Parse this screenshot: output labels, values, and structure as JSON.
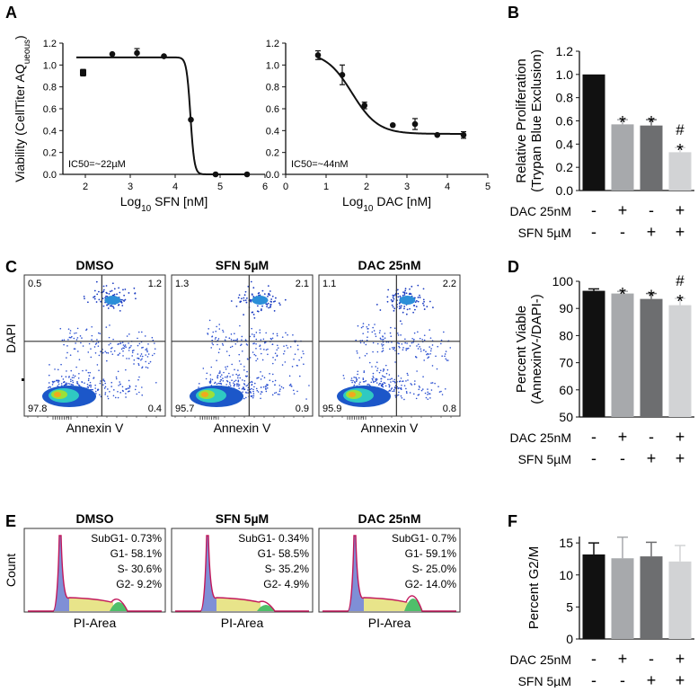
{
  "panel_letters": {
    "a": "A",
    "b": "B",
    "c": "C",
    "d": "D",
    "e": "E",
    "f": "F"
  },
  "colors": {
    "black": "#111111",
    "dark_gray": "#6d6e70",
    "mid_gray": "#a7a9ac",
    "light_gray": "#d2d3d5"
  },
  "chart_data": [
    {
      "id": "A1",
      "type": "scatter",
      "ylabel_main": "Viability (CellTiter AQ",
      "ylabel_sub": "ueous",
      "ylabel_end": ")",
      "xlabel_prefix": "Log",
      "xlabel_sub": "10",
      "xlabel_suffix": " SFN [nM]",
      "xlim": [
        1.5,
        6
      ],
      "ylim": [
        0,
        1.2
      ],
      "xticks": [
        "2",
        "3",
        "4",
        "5",
        "6"
      ],
      "yticks": [
        "0.0",
        "0.2",
        "0.4",
        "0.6",
        "0.8",
        "1.0",
        "1.2"
      ],
      "annotation": "IC50=~22µM",
      "points": [
        {
          "x": 1.95,
          "y": 0.93,
          "err": 0.03
        },
        {
          "x": 2.6,
          "y": 1.1,
          "err": 0.0
        },
        {
          "x": 3.15,
          "y": 1.11,
          "err": 0.04
        },
        {
          "x": 3.75,
          "y": 1.08,
          "err": 0.0
        },
        {
          "x": 4.35,
          "y": 0.5,
          "err": 0.0
        },
        {
          "x": 4.9,
          "y": 0.0,
          "err": 0.0
        },
        {
          "x": 5.6,
          "y": 0.0,
          "err": 0.0
        }
      ],
      "fit": {
        "top": 1.07,
        "bottom": 0.0,
        "logic50": 4.34,
        "hill": 10,
        "from": 1.8,
        "to": 5.6
      }
    },
    {
      "id": "A2",
      "type": "scatter",
      "xlabel_prefix": "Log",
      "xlabel_sub": "10",
      "xlabel_suffix": " DAC [nM]",
      "xlim": [
        0,
        5
      ],
      "ylim": [
        0,
        1.2
      ],
      "xticks": [
        "0",
        "1",
        "2",
        "3",
        "4",
        "5"
      ],
      "yticks": [
        "0.0",
        "0.2",
        "0.4",
        "0.6",
        "0.8",
        "1.0",
        "1.2"
      ],
      "annotation": "IC50=~44nM",
      "points": [
        {
          "x": 0.8,
          "y": 1.09,
          "err": 0.04
        },
        {
          "x": 1.4,
          "y": 0.91,
          "err": 0.09
        },
        {
          "x": 1.95,
          "y": 0.63,
          "err": 0.03
        },
        {
          "x": 2.65,
          "y": 0.45,
          "err": 0.0
        },
        {
          "x": 3.2,
          "y": 0.46,
          "err": 0.05
        },
        {
          "x": 3.75,
          "y": 0.36,
          "err": 0.0
        },
        {
          "x": 4.4,
          "y": 0.36,
          "err": 0.03
        }
      ],
      "fit": {
        "top": 1.12,
        "bottom": 0.37,
        "logic50": 1.64,
        "hill": 1.35,
        "from": 0.8,
        "to": 4.4
      }
    },
    {
      "id": "B",
      "type": "bar",
      "ylabel": "Relative Proliferation",
      "ylabel2": "(Trypan Blue Exclusion)",
      "ylim": [
        0,
        1.2
      ],
      "yticks": [
        "0.0",
        "0.2",
        "0.4",
        "0.6",
        "0.8",
        "1.0",
        "1.2"
      ],
      "values": [
        1.0,
        0.57,
        0.56,
        0.33
      ],
      "errors": [
        0.0,
        0.04,
        0.05,
        0.04
      ],
      "marks": [
        "",
        "*",
        "*",
        "*"
      ],
      "hash_marks": [
        "",
        "",
        "",
        "#"
      ],
      "row_labels": [
        "DAC 25nM",
        "SFN 5µM"
      ],
      "signs": [
        [
          "-",
          "+",
          "-",
          "+"
        ],
        [
          "-",
          "-",
          "+",
          "+"
        ]
      ]
    },
    {
      "id": "D",
      "type": "bar",
      "ylabel": "Percent Viable",
      "ylabel2": "(AnnexinV-/DAPI-)",
      "ylim": [
        50,
        100
      ],
      "yticks": [
        "50",
        "60",
        "70",
        "80",
        "90",
        "100"
      ],
      "values": [
        96.5,
        95.5,
        93.5,
        91.2
      ],
      "errors": [
        0.7,
        0.8,
        2.0,
        2.5
      ],
      "marks": [
        "",
        "*",
        "*",
        "*"
      ],
      "hash_marks": [
        "",
        "",
        "",
        "#"
      ],
      "row_labels": [
        "DAC 25nM",
        "SFN 5µM"
      ],
      "signs": [
        [
          "-",
          "+",
          "-",
          "+"
        ],
        [
          "-",
          "-",
          "+",
          "+"
        ]
      ]
    },
    {
      "id": "F",
      "type": "bar",
      "ylabel": "Percent G2/M",
      "ylabel2": "",
      "ylim": [
        0,
        16
      ],
      "yticks": [
        "0",
        "5",
        "10",
        "15"
      ],
      "values": [
        13.2,
        12.6,
        12.9,
        12.1
      ],
      "errors": [
        1.8,
        3.3,
        2.2,
        2.5
      ],
      "marks": [
        "",
        "",
        "",
        ""
      ],
      "hash_marks": [
        "",
        "",
        "",
        ""
      ],
      "row_labels": [
        "DAC 25nM",
        "SFN 5µM"
      ],
      "signs": [
        [
          "-",
          "+",
          "-",
          "+"
        ],
        [
          "-",
          "-",
          "+",
          "+"
        ]
      ]
    }
  ],
  "flow": {
    "ylabel": "DAPI",
    "xlabel": "Annexin V",
    "plots": [
      {
        "title": "DMSO",
        "ul": "0.5",
        "ur": "1.2",
        "ll": "97.8",
        "lr": "0.4"
      },
      {
        "title": "SFN 5µM",
        "ul": "1.3",
        "ur": "2.1",
        "ll": "95.7",
        "lr": "0.9"
      },
      {
        "title": "DAC 25nM",
        "ul": "1.1",
        "ur": "2.2",
        "ll": "95.9",
        "lr": "0.8"
      }
    ]
  },
  "cycle": {
    "ylabel": "Count",
    "xlabel": "PI-Area",
    "plots": [
      {
        "title": "DMSO",
        "stats": [
          "SubG1- 0.73%",
          "G1- 58.1%",
          "S- 30.6%",
          "G2- 9.2%"
        ]
      },
      {
        "title": "SFN 5µM",
        "stats": [
          "SubG1- 0.34%",
          "G1- 58.5%",
          "S- 35.2%",
          "G2- 4.9%"
        ]
      },
      {
        "title": "DAC 25nM",
        "stats": [
          "SubG1- 0.7%",
          "G1- 59.1%",
          "S- 25.0%",
          "G2- 14.0%"
        ]
      }
    ]
  }
}
